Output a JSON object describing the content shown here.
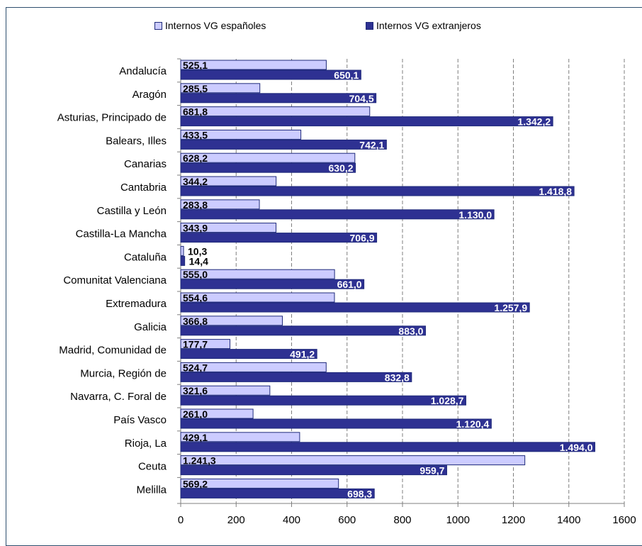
{
  "chart_data": {
    "type": "bar",
    "orientation": "horizontal",
    "categories": [
      "Andalucía",
      "Aragón",
      "Asturias, Principado de",
      "Balears, Illes",
      "Canarias",
      "Cantabria",
      "Castilla y León",
      "Castilla-La Mancha",
      "Cataluña",
      "Comunitat Valenciana",
      "Extremadura",
      "Galicia",
      "Madrid, Comunidad de",
      "Murcia, Región de",
      "Navarra, C. Foral de",
      "País Vasco",
      "Rioja, La",
      "Ceuta",
      "Melilla"
    ],
    "series": [
      {
        "name": "Internos VG españoles",
        "color": "#ccccff",
        "values": [
          525.1,
          285.5,
          681.8,
          433.5,
          628.2,
          344.2,
          283.8,
          343.9,
          10.3,
          555.0,
          554.6,
          366.8,
          177.7,
          524.7,
          321.6,
          261.0,
          429.1,
          1241.3,
          569.2
        ],
        "labels": [
          "525,1",
          "285,5",
          "681,8",
          "433,5",
          "628,2",
          "344,2",
          "283,8",
          "343,9",
          "10,3",
          "555,0",
          "554,6",
          "366,8",
          "177,7",
          "524,7",
          "321,6",
          "261,0",
          "429,1",
          "1.241,3",
          "569,2"
        ]
      },
      {
        "name": "Internos VG extranjeros",
        "color": "#2e3192",
        "values": [
          650.1,
          704.5,
          1342.2,
          742.1,
          630.2,
          1418.8,
          1130.0,
          706.9,
          14.4,
          661.0,
          1257.9,
          883.0,
          491.2,
          832.8,
          1028.7,
          1120.4,
          1494.0,
          959.7,
          698.3
        ],
        "labels": [
          "650,1",
          "704,5",
          "1.342,2",
          "742,1",
          "630,2",
          "1.418,8",
          "1.130,0",
          "706,9",
          "14,4",
          "661,0",
          "1.257,9",
          "883,0",
          "491,2",
          "832,8",
          "1.028,7",
          "1.120,4",
          "1.494,0",
          "959,7",
          "698,3"
        ]
      }
    ],
    "xlim": [
      0,
      1600
    ],
    "xticks": [
      "0",
      "200",
      "400",
      "600",
      "800",
      "1000",
      "1200",
      "1400",
      "1600"
    ],
    "grid": "vertical dashed",
    "legend_position": "top"
  }
}
